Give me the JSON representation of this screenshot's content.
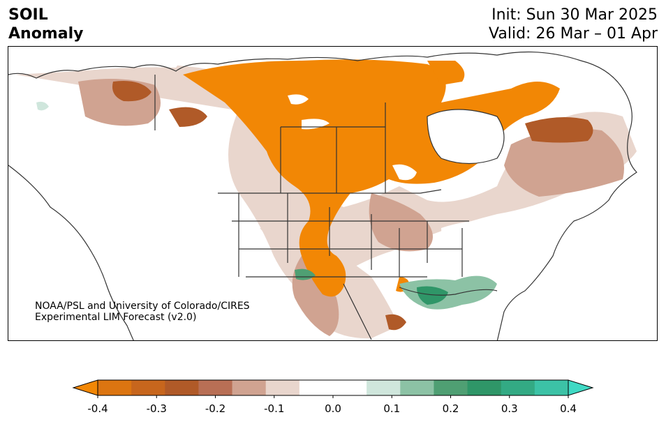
{
  "header": {
    "title_line1": "SOIL",
    "title_line2": "Anomaly",
    "init": "Init: Sun 30 Mar 2025",
    "valid": "Valid: 26 Mar – 01 Apr"
  },
  "map": {
    "credit_line1": "NOAA/PSL and University of Colorado/CIRES",
    "credit_line2": "Experimental LIM Forecast (v2.0)"
  },
  "colorbar": {
    "ticks": [
      "-0.4",
      "-0.3",
      "-0.2",
      "-0.1",
      "0.0",
      "0.1",
      "0.2",
      "0.3",
      "0.4"
    ],
    "colors": [
      "#f28705",
      "#dc7511",
      "#c7661d",
      "#b05a28",
      "#b86f55",
      "#d0a391",
      "#e9d6cd",
      "#ffffff",
      "#ffffff",
      "#cfe6dc",
      "#8cc2a5",
      "#4f9f73",
      "#2f9668",
      "#33aa84",
      "#3cc2a6",
      "#40d9c4"
    ]
  }
}
